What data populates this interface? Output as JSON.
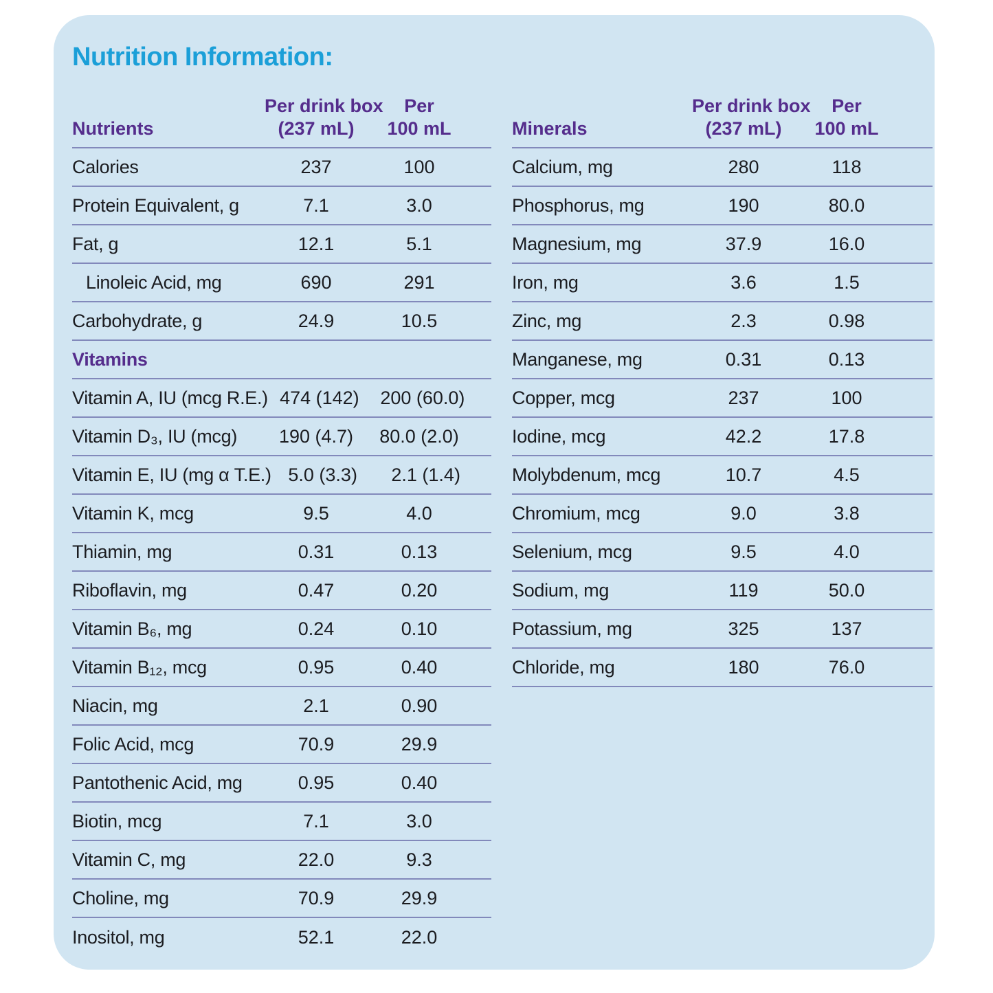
{
  "title": "Nutrition Information:",
  "colors": {
    "accent": "#1b9fd8",
    "heading": "#552d8c",
    "line": "#8289bb",
    "card_bg": "#d1e5f2",
    "text": "#1b1c20",
    "page_bg": "#ffffff"
  },
  "tables": [
    {
      "id": "nutrients",
      "header": {
        "label": "Nutrients",
        "col1": [
          "Per drink box",
          "(237 mL)"
        ],
        "col2": [
          "Per",
          "100 mL"
        ]
      },
      "rows": [
        {
          "label": "Calories",
          "per_box": "237",
          "per_100": "100"
        },
        {
          "label": "Protein Equivalent, g",
          "per_box": "7.1",
          "per_100": "3.0"
        },
        {
          "label": "Fat, g",
          "per_box": "12.1",
          "per_100": "5.1"
        },
        {
          "label": "Linoleic Acid, mg",
          "per_box": "690",
          "per_100": "291",
          "indent": true
        },
        {
          "label": "Carbohydrate, g",
          "per_box": "24.9",
          "per_100": "10.5"
        },
        {
          "type": "section",
          "label": "Vitamins"
        },
        {
          "label": "Vitamin A, IU (mcg R.E.)",
          "per_box": "474 (142)",
          "per_100": "200 (60.0)"
        },
        {
          "label": "Vitamin D₃, IU (mcg)",
          "per_box": "190 (4.7)",
          "per_100": "80.0 (2.0)"
        },
        {
          "label": "Vitamin E, IU (mg α T.E.)",
          "per_box": "5.0 (3.3)",
          "per_100": "2.1 (1.4)"
        },
        {
          "label": "Vitamin K, mcg",
          "per_box": "9.5",
          "per_100": "4.0"
        },
        {
          "label": "Thiamin, mg",
          "per_box": "0.31",
          "per_100": "0.13"
        },
        {
          "label": "Riboflavin, mg",
          "per_box": "0.47",
          "per_100": "0.20"
        },
        {
          "label": "Vitamin B₆, mg",
          "per_box": "0.24",
          "per_100": "0.10"
        },
        {
          "label": "Vitamin B₁₂, mcg",
          "per_box": "0.95",
          "per_100": "0.40"
        },
        {
          "label": "Niacin, mg",
          "per_box": "2.1",
          "per_100": "0.90"
        },
        {
          "label": "Folic Acid, mcg",
          "per_box": "70.9",
          "per_100": "29.9"
        },
        {
          "label": "Pantothenic Acid, mg",
          "per_box": "0.95",
          "per_100": "0.40"
        },
        {
          "label": "Biotin, mcg",
          "per_box": "7.1",
          "per_100": "3.0"
        },
        {
          "label": "Vitamin C, mg",
          "per_box": "22.0",
          "per_100": "9.3"
        },
        {
          "label": "Choline, mg",
          "per_box": "70.9",
          "per_100": "29.9"
        },
        {
          "label": "Inositol, mg",
          "per_box": "52.1",
          "per_100": "22.0",
          "no_border": true
        }
      ]
    },
    {
      "id": "minerals",
      "header": {
        "label": "Minerals",
        "col1": [
          "Per drink box",
          "(237 mL)"
        ],
        "col2": [
          "Per",
          "100 mL"
        ]
      },
      "rows": [
        {
          "label": "Calcium, mg",
          "per_box": "280",
          "per_100": "118"
        },
        {
          "label": "Phosphorus, mg",
          "per_box": "190",
          "per_100": "80.0"
        },
        {
          "label": "Magnesium, mg",
          "per_box": "37.9",
          "per_100": "16.0"
        },
        {
          "label": "Iron, mg",
          "per_box": "3.6",
          "per_100": "1.5"
        },
        {
          "label": "Zinc, mg",
          "per_box": "2.3",
          "per_100": "0.98"
        },
        {
          "label": "Manganese, mg",
          "per_box": "0.31",
          "per_100": "0.13"
        },
        {
          "label": "Copper, mcg",
          "per_box": "237",
          "per_100": "100"
        },
        {
          "label": "Iodine, mcg",
          "per_box": "42.2",
          "per_100": "17.8"
        },
        {
          "label": "Molybdenum, mcg",
          "per_box": "10.7",
          "per_100": "4.5"
        },
        {
          "label": "Chromium, mcg",
          "per_box": "9.0",
          "per_100": "3.8"
        },
        {
          "label": "Selenium, mcg",
          "per_box": "9.5",
          "per_100": "4.0"
        },
        {
          "label": "Sodium, mg",
          "per_box": "119",
          "per_100": "50.0"
        },
        {
          "label": "Potassium, mg",
          "per_box": "325",
          "per_100": "137"
        },
        {
          "label": "Chloride, mg",
          "per_box": "180",
          "per_100": "76.0"
        }
      ]
    }
  ]
}
